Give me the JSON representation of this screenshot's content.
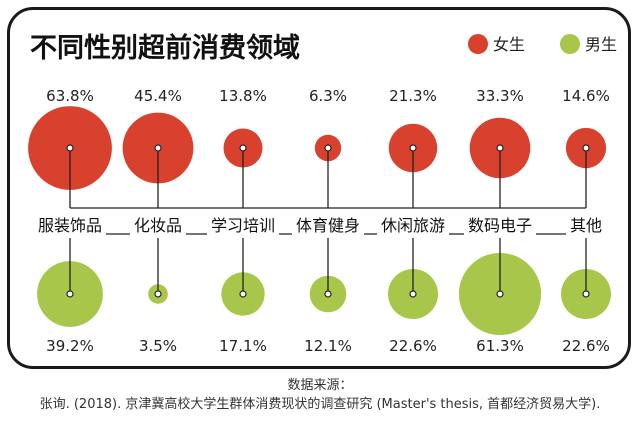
{
  "chart_data": {
    "type": "bubble",
    "title": "不同性别超前消费领域",
    "categories": [
      "服装饰品",
      "化妆品",
      "学习培训",
      "体育健身",
      "休闲旅游",
      "数码电子",
      "其他"
    ],
    "series": [
      {
        "name": "女生",
        "color": "#d9412f",
        "values": [
          63.8,
          45.4,
          13.8,
          6.3,
          21.3,
          33.3,
          14.6
        ],
        "labels": [
          "63.8%",
          "45.4%",
          "13.8%",
          "6.3%",
          "21.3%",
          "33.3%",
          "14.6%"
        ]
      },
      {
        "name": "男生",
        "color": "#a8c64a",
        "values": [
          39.2,
          3.5,
          17.1,
          12.1,
          22.6,
          61.3,
          22.6
        ],
        "labels": [
          "39.2%",
          "3.5%",
          "17.1%",
          "12.1%",
          "22.6%",
          "61.3%",
          "22.6%"
        ]
      }
    ]
  },
  "source": {
    "heading": "数据来源：",
    "citation": "张询. (2018). 京津冀高校大学生群体消费现状的调查研究 (Master's thesis, 首都经济贸易大学)."
  }
}
